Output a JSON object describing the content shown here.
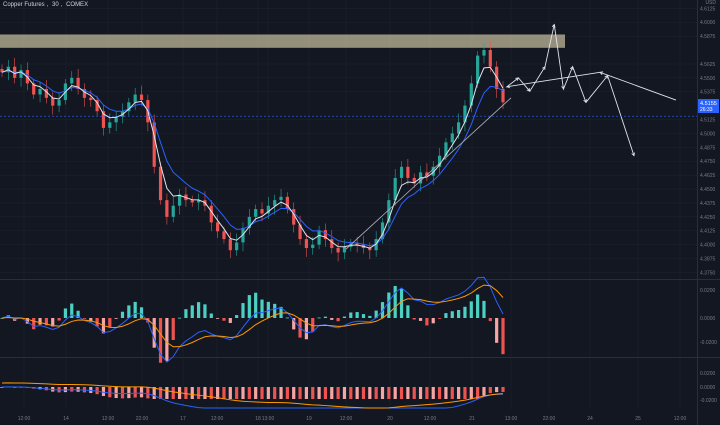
{
  "header": {
    "symbol": "Copper Futures",
    "interval": "30",
    "exchange": "COMEX",
    "currency": "USD"
  },
  "price_badge": {
    "price": "4.5155",
    "sub": "26:33"
  },
  "colors": {
    "background": "#131722",
    "up": "#26a69a",
    "down": "#ef5350",
    "ema_fast": "#e0e3eb",
    "ema_slow": "#2962ff",
    "macd_signal": "#ff9800",
    "zone": "#fff2c4",
    "price_label": "#2962ff"
  },
  "chart_data": {
    "type": "candlestick",
    "price_axis": {
      "ticks": [
        "4.6125",
        "4.6000",
        "4.5875",
        "4.5625",
        "4.5500",
        "4.5375",
        "4.5125",
        "4.5000",
        "4.4875",
        "4.4750",
        "4.4625",
        "4.4500",
        "4.4375",
        "4.4250",
        "4.4125",
        "4.4000",
        "4.3875",
        "4.3750"
      ],
      "range": [
        4.37,
        4.62
      ]
    },
    "time_axis": {
      "ticks": [
        "12:00",
        "14",
        "12:00",
        "22:00",
        "17",
        "12:00",
        "18",
        "13:00",
        "19",
        "12:00",
        "20",
        "12:00",
        "21",
        "13:00",
        "22:00",
        "24",
        "25",
        "12:00"
      ]
    },
    "resistance_zone": {
      "low": 4.577,
      "high": 4.589
    },
    "trendline": [
      [
        "19 12:00",
        4.396
      ],
      [
        "21 13:00",
        4.532
      ]
    ],
    "projection_path": [
      {
        "time": "21 12:00",
        "price": 4.53
      },
      {
        "time": "21 12:00",
        "price": 4.555
      },
      {
        "time": "21 13:00",
        "price": 4.542
      },
      {
        "time": "21 13:00",
        "price": 4.55
      },
      {
        "time": "21 13:00",
        "price": 4.538
      },
      {
        "time": "22:00",
        "price": 4.56
      },
      {
        "time": "22:00",
        "price": 4.598
      },
      {
        "time": "22:00",
        "price": 4.54
      },
      {
        "time": "22:00",
        "price": 4.56
      },
      {
        "time": "24",
        "price": 4.528
      },
      {
        "time": "24",
        "price": 4.552
      },
      {
        "time": "25",
        "price": 4.48
      }
    ],
    "close_series": [
      4.555,
      4.56,
      4.55,
      4.557,
      4.545,
      4.535,
      4.54,
      4.532,
      4.525,
      4.53,
      4.545,
      4.55,
      4.54,
      4.532,
      4.53,
      4.52,
      4.505,
      4.51,
      4.515,
      4.52,
      4.528,
      4.535,
      4.53,
      4.51,
      4.47,
      4.44,
      4.425,
      4.435,
      4.445,
      4.44,
      4.438,
      4.44,
      4.435,
      4.42,
      4.412,
      4.405,
      4.395,
      4.402,
      4.415,
      4.425,
      4.432,
      4.428,
      4.435,
      4.44,
      4.443,
      4.432,
      4.418,
      4.405,
      4.397,
      4.4,
      4.413,
      4.405,
      4.397,
      4.393,
      4.398,
      4.401,
      4.4,
      4.397,
      4.395,
      4.405,
      4.42,
      4.44,
      4.46,
      4.47,
      4.46,
      4.455,
      4.465,
      4.462,
      4.47,
      4.48,
      4.492,
      4.5,
      4.51,
      4.525,
      4.545,
      4.57,
      4.575,
      4.56,
      4.54,
      4.528
    ],
    "macd_axis": {
      "ticks": [
        "0.0200",
        "0.0000",
        "-0.0200"
      ]
    },
    "osc_axis": {
      "ticks": [
        "0.0200",
        "0.0000",
        "-0.0200"
      ]
    }
  }
}
